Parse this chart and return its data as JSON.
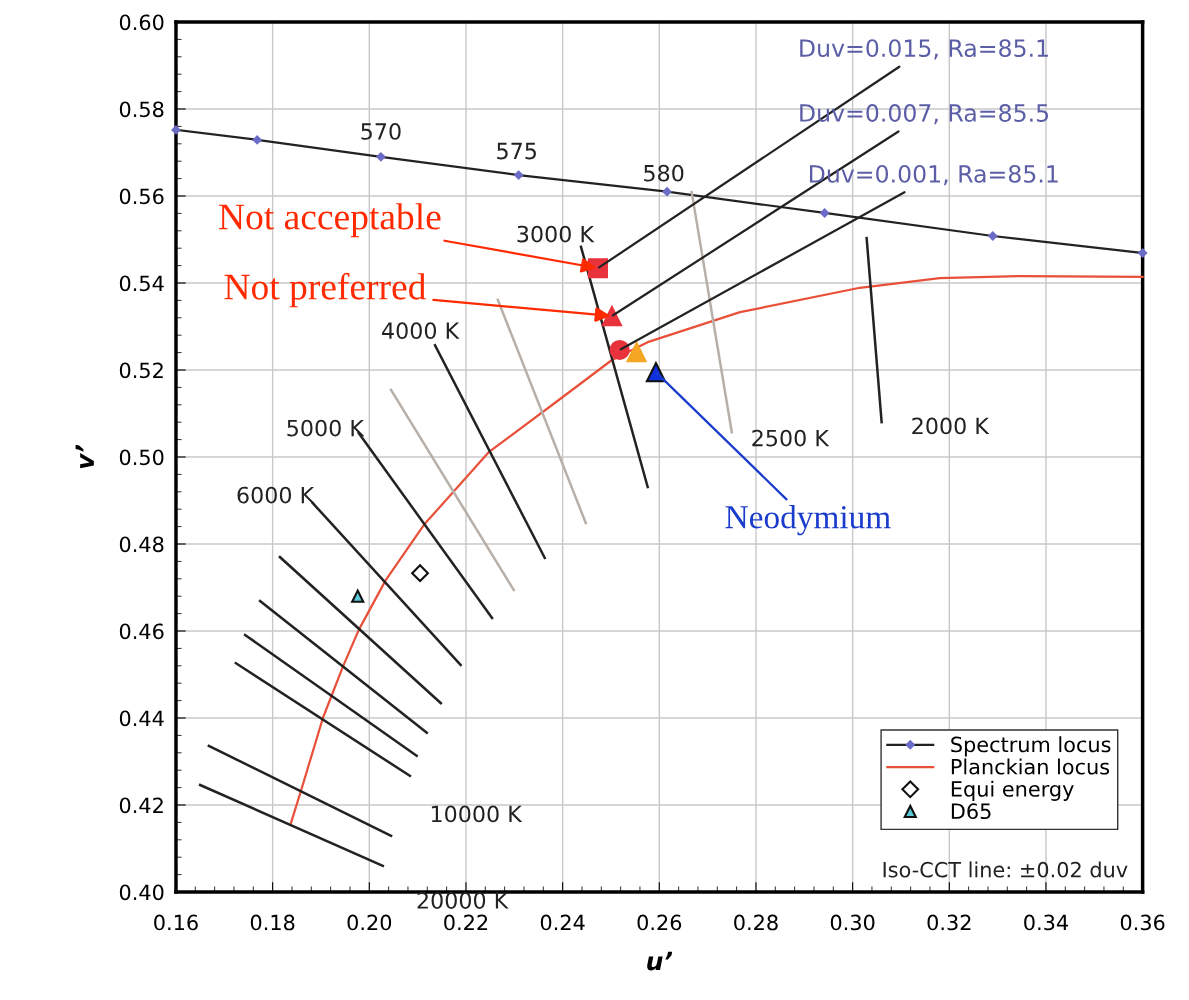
{
  "chart_data": {
    "type": "line",
    "xlabel": "u’",
    "ylabel": "v’",
    "xlim": [
      0.16,
      0.36
    ],
    "ylim": [
      0.4,
      0.6
    ],
    "xticks": [
      0.16,
      0.18,
      {
        "value": 0.2,
        "label": "0.20"
      },
      0.22,
      0.24,
      0.26,
      0.28,
      {
        "value": 0.3,
        "label": "0.30"
      },
      0.32,
      0.34,
      0.36
    ],
    "yticks": [
      {
        "value": 0.4,
        "label": "0.40"
      },
      0.42,
      0.44,
      0.46,
      0.48,
      {
        "value": 0.5,
        "label": "0.50"
      },
      0.52,
      0.54,
      0.56,
      0.58,
      {
        "value": 0.6,
        "label": "0.60"
      }
    ],
    "grid": true,
    "legend": "bottom right",
    "series": [
      {
        "name": "Spectrum locus",
        "color": "#222222",
        "marker": "diamond",
        "x": [
          0.16,
          0.1768,
          0.2024,
          0.2309,
          0.2616,
          0.2942,
          0.329,
          0.36
        ],
        "values": [
          0.5752,
          0.5729,
          0.569,
          0.5648,
          0.561,
          0.5561,
          0.5508,
          0.5469
        ]
      },
      {
        "name": "Planckian locus",
        "color": "#e8503a",
        "x": [
          0.1838,
          0.1859,
          0.1904,
          0.1945,
          0.1978,
          0.2034,
          0.2113,
          0.2247,
          0.2392,
          0.2502,
          0.2576,
          0.2767,
          0.3015,
          0.318,
          0.3346,
          0.36
        ],
        "values": [
          0.4159,
          0.4234,
          0.44,
          0.4517,
          0.4602,
          0.4717,
          0.4844,
          0.5011,
          0.5131,
          0.5223,
          0.5264,
          0.5333,
          0.5389,
          0.5411,
          0.5416,
          0.5414
        ]
      },
      {
        "name": "Equi energy",
        "type": "scatter",
        "color": "#ffffff",
        "marker": "diamond",
        "x": [
          0.2105
        ],
        "values": [
          0.4733
        ]
      },
      {
        "name": "D65",
        "type": "scatter",
        "color": "#5bc8d8",
        "marker": "triangle",
        "x": [
          0.1976
        ],
        "values": [
          0.468
        ]
      },
      {
        "type": "scatter",
        "color": "#e8323c",
        "marker": "square",
        "x": [
          0.2473
        ],
        "values": [
          0.5434
        ]
      },
      {
        "type": "scatter",
        "color": "#e8323c",
        "marker": "triangle",
        "x": [
          0.2502
        ],
        "values": [
          0.5324
        ]
      },
      {
        "type": "scatter",
        "color": "#e8323c",
        "marker": "circle",
        "x": [
          0.2518
        ],
        "values": [
          0.5246
        ]
      },
      {
        "type": "scatter",
        "color": "#f5a623",
        "marker": "triangle",
        "x": [
          0.2553
        ],
        "values": [
          0.5241
        ]
      },
      {
        "type": "scatter",
        "color": "#1030e0",
        "marker": "triangle",
        "x": [
          0.2593
        ],
        "values": [
          0.5195
        ]
      },
      {
        "color": "#222222",
        "x": [
          0.2438,
          0.2576
        ],
        "values": [
          0.5483,
          0.4931
        ]
      },
      {
        "color": "#b8b0a8",
        "x": [
          0.2667,
          0.275
        ],
        "values": [
          0.5609,
          0.5057
        ]
      },
      {
        "color": "#222222",
        "x": [
          0.3029,
          0.306
        ],
        "values": [
          0.5503,
          0.508
        ]
      },
      {
        "color": "#b8b0a8",
        "x": [
          0.2266,
          0.2448
        ],
        "values": [
          0.5361,
          0.4848
        ]
      },
      {
        "color": "#222222",
        "x": [
          0.2136,
          0.2363
        ],
        "values": [
          0.5257,
          0.4768
        ]
      },
      {
        "color": "#b8b0a8",
        "x": [
          0.2045,
          0.2299
        ],
        "values": [
          0.5154,
          0.4694
        ]
      },
      {
        "color": "#222222",
        "x": [
          0.1978,
          0.2254
        ],
        "values": [
          0.5055,
          0.463
        ]
      },
      {
        "color": "#222222",
        "x": [
          0.1883,
          0.2189
        ],
        "values": [
          0.4894,
          0.4522
        ]
      },
      {
        "color": "#222222",
        "x": [
          0.1815,
          0.2148
        ],
        "values": [
          0.477,
          0.4434
        ]
      },
      {
        "color": "#222222",
        "x": [
          0.1774,
          0.2119
        ],
        "values": [
          0.4669,
          0.4366
        ]
      },
      {
        "color": "#222222",
        "x": [
          0.1743,
          0.2098
        ],
        "values": [
          0.4591,
          0.4313
        ]
      },
      {
        "color": "#222222",
        "x": [
          0.1724,
          0.2084
        ],
        "values": [
          0.4526,
          0.4267
        ]
      },
      {
        "color": "#222222",
        "x": [
          0.1668,
          0.2045
        ],
        "values": [
          0.4336,
          0.4129
        ]
      },
      {
        "color": "#222222",
        "x": [
          0.165,
          0.2028
        ],
        "values": [
          0.4246,
          0.406
        ]
      }
    ],
    "annotations": [
      "570",
      "575",
      "580",
      "3000 K",
      "4000 K",
      "5000 K",
      "6000 K",
      "10000 K",
      "20000 K",
      "2500 K",
      "2000 K",
      {
        "text": "Duv=0.015, Ra=85.1",
        "x": 0.2473,
        "y": 0.5434
      },
      {
        "text": "Duv=0.007, Ra=85.5",
        "x": 0.2502,
        "y": 0.5324
      },
      {
        "text": "Duv=0.001, Ra=85.1",
        "x": 0.2518,
        "y": 0.5246
      },
      {
        "text": "Not acceptable",
        "x": 0.2473,
        "y": 0.5434
      },
      {
        "text": "Not preferred",
        "x": 0.2502,
        "y": 0.5324
      },
      {
        "text": "Neodymium",
        "x": 0.2593,
        "y": 0.5195
      },
      "Iso-CCT line: ±0.02 duv"
    ]
  }
}
